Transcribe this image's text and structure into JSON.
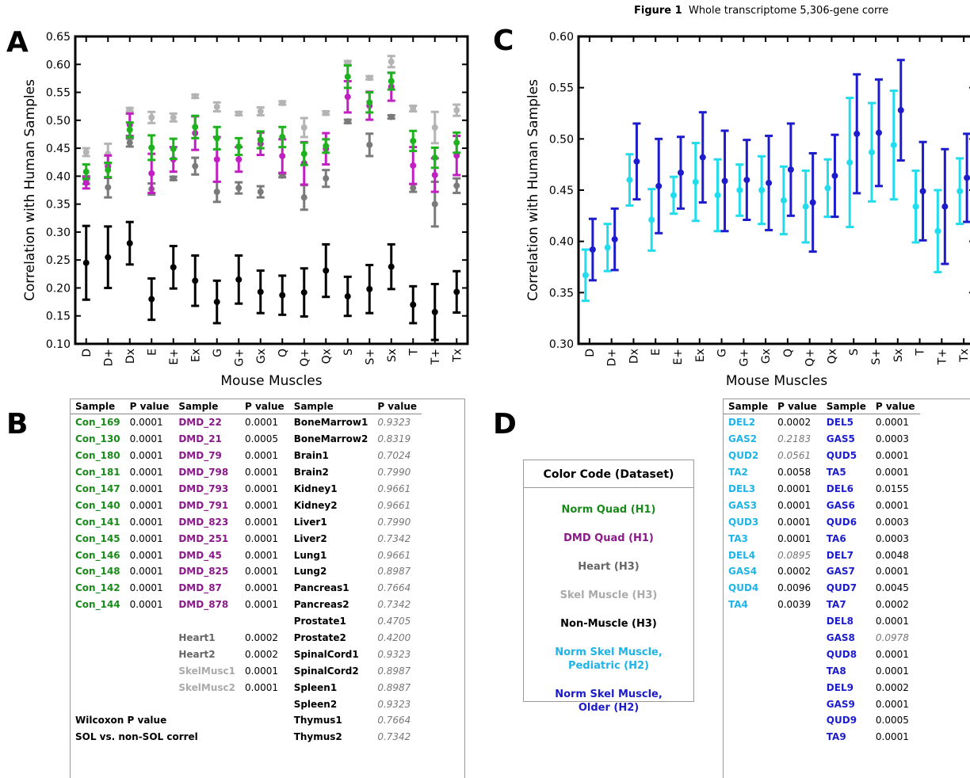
{
  "figure_title": {
    "label": "Figure 1",
    "text": "Whole transcriptome 5,306-gene corre"
  },
  "panels": {
    "A": "A",
    "B": "B",
    "C": "C",
    "D": "D"
  },
  "chart_data": [
    {
      "panel": "A",
      "type": "scatter",
      "xlabel": "Mouse Muscles",
      "ylabel": "Correlation with Human Samples",
      "categories": [
        "D",
        "D+",
        "Dx",
        "E",
        "E+",
        "Ex",
        "G",
        "G+",
        "Gx",
        "Q",
        "Q+",
        "Qx",
        "S",
        "S+",
        "Sx",
        "T",
        "T+",
        "Tx"
      ],
      "ylim": [
        0.1,
        0.65
      ],
      "yticks": [
        "0.10",
        "0.15",
        "0.20",
        "0.25",
        "0.30",
        "0.35",
        "0.40",
        "0.45",
        "0.50",
        "0.55",
        "0.60",
        "0.65"
      ],
      "series": [
        {
          "color": "#b4b4b4",
          "values": [
            0.443,
            0.44,
            0.519,
            0.505,
            0.505,
            0.543,
            0.524,
            0.512,
            0.516,
            0.531,
            0.487,
            0.513,
            0.603,
            0.576,
            0.605,
            0.521,
            0.487,
            0.518
          ],
          "errors": [
            0.007,
            0.018,
            0.003,
            0.01,
            0.007,
            0.003,
            0.008,
            0.003,
            0.007,
            0.003,
            0.017,
            0.003,
            0.003,
            0.003,
            0.01,
            0.005,
            0.028,
            0.01
          ]
        },
        {
          "color": "#7a7a7a",
          "values": [
            0.393,
            0.38,
            0.46,
            0.377,
            0.396,
            0.418,
            0.372,
            0.379,
            0.372,
            0.401,
            0.362,
            0.396,
            0.498,
            0.456,
            0.506,
            0.379,
            0.35,
            0.383
          ],
          "errors": [
            0.007,
            0.018,
            0.007,
            0.01,
            0.003,
            0.015,
            0.018,
            0.01,
            0.01,
            0.003,
            0.022,
            0.015,
            0.003,
            0.02,
            0.003,
            0.007,
            0.04,
            0.013
          ]
        },
        {
          "color": "#c21fc2",
          "values": [
            0.388,
            0.417,
            0.492,
            0.405,
            0.43,
            0.477,
            0.43,
            0.43,
            0.458,
            0.436,
            0.423,
            0.449,
            0.542,
            0.526,
            0.56,
            0.419,
            0.402,
            0.437
          ],
          "errors": [
            0.01,
            0.02,
            0.02,
            0.035,
            0.022,
            0.03,
            0.04,
            0.022,
            0.02,
            0.03,
            0.038,
            0.028,
            0.028,
            0.025,
            0.025,
            0.033,
            0.03,
            0.035
          ]
        },
        {
          "color": "#1fb21f",
          "values": [
            0.408,
            0.411,
            0.483,
            0.451,
            0.449,
            0.488,
            0.468,
            0.453,
            0.465,
            0.47,
            0.44,
            0.454,
            0.578,
            0.532,
            0.57,
            0.463,
            0.433,
            0.46
          ],
          "errors": [
            0.013,
            0.013,
            0.013,
            0.022,
            0.018,
            0.02,
            0.02,
            0.015,
            0.015,
            0.018,
            0.02,
            0.012,
            0.02,
            0.018,
            0.015,
            0.018,
            0.018,
            0.018
          ]
        },
        {
          "color": "#000000",
          "values": [
            0.245,
            0.255,
            0.28,
            0.18,
            0.237,
            0.213,
            0.175,
            0.215,
            0.193,
            0.187,
            0.192,
            0.231,
            0.185,
            0.198,
            0.238,
            0.17,
            0.157,
            0.193
          ],
          "errors": [
            0.066,
            0.055,
            0.038,
            0.037,
            0.038,
            0.045,
            0.038,
            0.043,
            0.038,
            0.035,
            0.043,
            0.047,
            0.035,
            0.043,
            0.04,
            0.033,
            0.05,
            0.037
          ]
        }
      ]
    },
    {
      "panel": "C",
      "type": "scatter",
      "xlabel": "Mouse Muscles",
      "ylabel": "Correlation with Human Samples",
      "categories": [
        "D",
        "D+",
        "Dx",
        "E",
        "E+",
        "Ex",
        "G",
        "G+",
        "Gx",
        "Q",
        "Q+",
        "Qx",
        "S",
        "S+",
        "Sx",
        "T",
        "T+",
        "Tx"
      ],
      "ylim": [
        0.3,
        0.6
      ],
      "yticks": [
        "0.30",
        "0.35",
        "0.40",
        "0.45",
        "0.50",
        "0.55",
        "0.60"
      ],
      "series": [
        {
          "color": "#20dcec",
          "values": [
            0.367,
            0.394,
            0.46,
            0.421,
            0.445,
            0.458,
            0.445,
            0.45,
            0.45,
            0.44,
            0.434,
            0.452,
            0.477,
            0.487,
            0.494,
            0.434,
            0.41,
            0.449
          ],
          "errors": [
            0.025,
            0.023,
            0.025,
            0.03,
            0.018,
            0.038,
            0.035,
            0.025,
            0.033,
            0.033,
            0.035,
            0.028,
            0.063,
            0.048,
            0.053,
            0.035,
            0.04,
            0.032
          ]
        },
        {
          "color": "#1c1ccc",
          "values": [
            0.392,
            0.402,
            0.478,
            0.454,
            0.467,
            0.482,
            0.459,
            0.46,
            0.457,
            0.47,
            0.438,
            0.464,
            0.505,
            0.506,
            0.528,
            0.449,
            0.434,
            0.462
          ],
          "errors": [
            0.03,
            0.03,
            0.037,
            0.046,
            0.035,
            0.044,
            0.049,
            0.039,
            0.046,
            0.045,
            0.048,
            0.04,
            0.058,
            0.052,
            0.049,
            0.048,
            0.056,
            0.043
          ]
        }
      ]
    }
  ],
  "table_b": {
    "headers": [
      "Sample",
      "P value",
      "Sample",
      "P value",
      "Sample",
      "P value"
    ],
    "rows": [
      [
        {
          "t": "Con_169",
          "c": "norm"
        },
        {
          "t": "0.0001"
        },
        {
          "t": "DMD_22",
          "c": "dmd"
        },
        {
          "t": "0.0001"
        },
        {
          "t": "BoneMarrow1",
          "c": "bold"
        },
        {
          "t": "0.9323",
          "c": "ital"
        }
      ],
      [
        {
          "t": "Con_130",
          "c": "norm"
        },
        {
          "t": "0.0001"
        },
        {
          "t": "DMD_21",
          "c": "dmd"
        },
        {
          "t": "0.0005"
        },
        {
          "t": "BoneMarrow2",
          "c": "bold"
        },
        {
          "t": "0.8319",
          "c": "ital"
        }
      ],
      [
        {
          "t": "Con_180",
          "c": "norm"
        },
        {
          "t": "0.0001"
        },
        {
          "t": "DMD_79",
          "c": "dmd"
        },
        {
          "t": "0.0001"
        },
        {
          "t": "Brain1",
          "c": "bold"
        },
        {
          "t": "0.7024",
          "c": "ital"
        }
      ],
      [
        {
          "t": "Con_181",
          "c": "norm"
        },
        {
          "t": "0.0001"
        },
        {
          "t": "DMD_798",
          "c": "dmd"
        },
        {
          "t": "0.0001"
        },
        {
          "t": "Brain2",
          "c": "bold"
        },
        {
          "t": "0.7990",
          "c": "ital"
        }
      ],
      [
        {
          "t": "Con_147",
          "c": "norm"
        },
        {
          "t": "0.0001"
        },
        {
          "t": "DMD_793",
          "c": "dmd"
        },
        {
          "t": "0.0001"
        },
        {
          "t": "Kidney1",
          "c": "bold"
        },
        {
          "t": "0.9661",
          "c": "ital"
        }
      ],
      [
        {
          "t": "Con_140",
          "c": "norm"
        },
        {
          "t": "0.0001"
        },
        {
          "t": "DMD_791",
          "c": "dmd"
        },
        {
          "t": "0.0001"
        },
        {
          "t": "Kidney2",
          "c": "bold"
        },
        {
          "t": "0.9661",
          "c": "ital"
        }
      ],
      [
        {
          "t": "Con_141",
          "c": "norm"
        },
        {
          "t": "0.0001"
        },
        {
          "t": "DMD_823",
          "c": "dmd"
        },
        {
          "t": "0.0001"
        },
        {
          "t": "Liver1",
          "c": "bold"
        },
        {
          "t": "0.7990",
          "c": "ital"
        }
      ],
      [
        {
          "t": "Con_145",
          "c": "norm"
        },
        {
          "t": "0.0001"
        },
        {
          "t": "DMD_251",
          "c": "dmd"
        },
        {
          "t": "0.0001"
        },
        {
          "t": "Liver2",
          "c": "bold"
        },
        {
          "t": "0.7342",
          "c": "ital"
        }
      ],
      [
        {
          "t": "Con_146",
          "c": "norm"
        },
        {
          "t": "0.0001"
        },
        {
          "t": "DMD_45",
          "c": "dmd"
        },
        {
          "t": "0.0001"
        },
        {
          "t": "Lung1",
          "c": "bold"
        },
        {
          "t": "0.9661",
          "c": "ital"
        }
      ],
      [
        {
          "t": "Con_148",
          "c": "norm"
        },
        {
          "t": "0.0001"
        },
        {
          "t": "DMD_825",
          "c": "dmd"
        },
        {
          "t": "0.0001"
        },
        {
          "t": "Lung2",
          "c": "bold"
        },
        {
          "t": "0.8987",
          "c": "ital"
        }
      ],
      [
        {
          "t": "Con_142",
          "c": "norm"
        },
        {
          "t": "0.0001"
        },
        {
          "t": "DMD_87",
          "c": "dmd"
        },
        {
          "t": "0.0001"
        },
        {
          "t": "Pancreas1",
          "c": "bold"
        },
        {
          "t": "0.7664",
          "c": "ital"
        }
      ],
      [
        {
          "t": "Con_144",
          "c": "norm"
        },
        {
          "t": "0.0001"
        },
        {
          "t": "DMD_878",
          "c": "dmd"
        },
        {
          "t": "0.0001"
        },
        {
          "t": "Pancreas2",
          "c": "bold"
        },
        {
          "t": "0.7342",
          "c": "ital"
        }
      ],
      [
        {
          "t": ""
        },
        {
          "t": ""
        },
        {
          "t": ""
        },
        {
          "t": ""
        },
        {
          "t": "Prostate1",
          "c": "bold"
        },
        {
          "t": "0.4705",
          "c": "ital"
        }
      ],
      [
        {
          "t": ""
        },
        {
          "t": ""
        },
        {
          "t": "Heart1",
          "c": "heart"
        },
        {
          "t": "0.0002"
        },
        {
          "t": "Prostate2",
          "c": "bold"
        },
        {
          "t": "0.4200",
          "c": "ital"
        }
      ],
      [
        {
          "t": ""
        },
        {
          "t": ""
        },
        {
          "t": "Heart2",
          "c": "heart"
        },
        {
          "t": "0.0002"
        },
        {
          "t": "SpinalCord1",
          "c": "bold"
        },
        {
          "t": "0.9323",
          "c": "ital"
        }
      ],
      [
        {
          "t": ""
        },
        {
          "t": ""
        },
        {
          "t": "SkelMusc1",
          "c": "skel"
        },
        {
          "t": "0.0001"
        },
        {
          "t": "SpinalCord2",
          "c": "bold"
        },
        {
          "t": "0.8987",
          "c": "ital"
        }
      ],
      [
        {
          "t": ""
        },
        {
          "t": ""
        },
        {
          "t": "SkelMusc2",
          "c": "skel"
        },
        {
          "t": "0.0001"
        },
        {
          "t": "Spleen1",
          "c": "bold"
        },
        {
          "t": "0.8987",
          "c": "ital"
        }
      ],
      [
        {
          "t": ""
        },
        {
          "t": ""
        },
        {
          "t": ""
        },
        {
          "t": ""
        },
        {
          "t": "Spleen2",
          "c": "bold"
        },
        {
          "t": "0.9323",
          "c": "ital"
        }
      ],
      [
        {
          "t": "Wilcoxon P value",
          "c": "bold",
          "span": 4
        },
        {
          "t": "Thymus1",
          "c": "bold"
        },
        {
          "t": "0.7664",
          "c": "ital"
        }
      ],
      [
        {
          "t": "SOL vs. non-SOL correl",
          "c": "bold",
          "span": 4
        },
        {
          "t": "Thymus2",
          "c": "bold"
        },
        {
          "t": "0.7342",
          "c": "ital"
        }
      ]
    ]
  },
  "legend": {
    "title": "Color Code (Dataset)",
    "items": [
      {
        "text": "Norm Quad (H1)",
        "c": "norm"
      },
      {
        "text": "DMD Quad (H1)",
        "c": "dmd"
      },
      {
        "text": "Heart (H3)",
        "c": "heart"
      },
      {
        "text": "Skel Muscle (H3)",
        "c": "skel"
      },
      {
        "text": "Non-Muscle (H3)",
        "c": "nonm"
      },
      {
        "text": "Norm Skel Muscle,\nPediatric (H2)",
        "c": "ped"
      },
      {
        "text": "Norm Skel Muscle,\nOlder (H2)",
        "c": "old"
      }
    ]
  },
  "table_d": {
    "headers": [
      "Sample",
      "P value",
      "Sample",
      "P value"
    ],
    "rows": [
      [
        {
          "t": "DEL2",
          "c": "ped"
        },
        {
          "t": "0.0002"
        },
        {
          "t": "DEL5",
          "c": "old"
        },
        {
          "t": "0.0001"
        }
      ],
      [
        {
          "t": "GAS2",
          "c": "ped"
        },
        {
          "t": "0.2183",
          "c": "ital"
        },
        {
          "t": "GAS5",
          "c": "old"
        },
        {
          "t": "0.0003"
        }
      ],
      [
        {
          "t": "QUD2",
          "c": "ped"
        },
        {
          "t": "0.0561",
          "c": "ital"
        },
        {
          "t": "QUD5",
          "c": "old"
        },
        {
          "t": "0.0001"
        }
      ],
      [
        {
          "t": "TA2",
          "c": "ped"
        },
        {
          "t": "0.0058"
        },
        {
          "t": "TA5",
          "c": "old"
        },
        {
          "t": "0.0001"
        }
      ],
      [
        {
          "t": "DEL3",
          "c": "ped"
        },
        {
          "t": "0.0001"
        },
        {
          "t": "DEL6",
          "c": "old"
        },
        {
          "t": "0.0155"
        }
      ],
      [
        {
          "t": "GAS3",
          "c": "ped"
        },
        {
          "t": "0.0001"
        },
        {
          "t": "GAS6",
          "c": "old"
        },
        {
          "t": "0.0001"
        }
      ],
      [
        {
          "t": "QUD3",
          "c": "ped"
        },
        {
          "t": "0.0001"
        },
        {
          "t": "QUD6",
          "c": "old"
        },
        {
          "t": "0.0003"
        }
      ],
      [
        {
          "t": "TA3",
          "c": "ped"
        },
        {
          "t": "0.0001"
        },
        {
          "t": "TA6",
          "c": "old"
        },
        {
          "t": "0.0003"
        }
      ],
      [
        {
          "t": "DEL4",
          "c": "ped"
        },
        {
          "t": "0.0895",
          "c": "ital"
        },
        {
          "t": "DEL7",
          "c": "old"
        },
        {
          "t": "0.0048"
        }
      ],
      [
        {
          "t": "GAS4",
          "c": "ped"
        },
        {
          "t": "0.0002"
        },
        {
          "t": "GAS7",
          "c": "old"
        },
        {
          "t": "0.0001"
        }
      ],
      [
        {
          "t": "QUD4",
          "c": "ped"
        },
        {
          "t": "0.0096"
        },
        {
          "t": "QUD7",
          "c": "old"
        },
        {
          "t": "0.0045"
        }
      ],
      [
        {
          "t": "TA4",
          "c": "ped"
        },
        {
          "t": "0.0039"
        },
        {
          "t": "TA7",
          "c": "old"
        },
        {
          "t": "0.0002"
        }
      ],
      [
        {
          "t": ""
        },
        {
          "t": ""
        },
        {
          "t": "DEL8",
          "c": "old"
        },
        {
          "t": "0.0001"
        }
      ],
      [
        {
          "t": ""
        },
        {
          "t": ""
        },
        {
          "t": "GAS8",
          "c": "old"
        },
        {
          "t": "0.0978",
          "c": "ital"
        }
      ],
      [
        {
          "t": ""
        },
        {
          "t": ""
        },
        {
          "t": "QUD8",
          "c": "old"
        },
        {
          "t": "0.0001"
        }
      ],
      [
        {
          "t": ""
        },
        {
          "t": ""
        },
        {
          "t": "TA8",
          "c": "old"
        },
        {
          "t": "0.0001"
        }
      ],
      [
        {
          "t": ""
        },
        {
          "t": ""
        },
        {
          "t": "DEL9",
          "c": "old"
        },
        {
          "t": "0.0002"
        }
      ],
      [
        {
          "t": ""
        },
        {
          "t": ""
        },
        {
          "t": "GAS9",
          "c": "old"
        },
        {
          "t": "0.0001"
        }
      ],
      [
        {
          "t": ""
        },
        {
          "t": ""
        },
        {
          "t": "QUD9",
          "c": "old"
        },
        {
          "t": "0.0005"
        }
      ],
      [
        {
          "t": ""
        },
        {
          "t": ""
        },
        {
          "t": "TA9",
          "c": "old"
        },
        {
          "t": "0.0001"
        }
      ]
    ]
  }
}
